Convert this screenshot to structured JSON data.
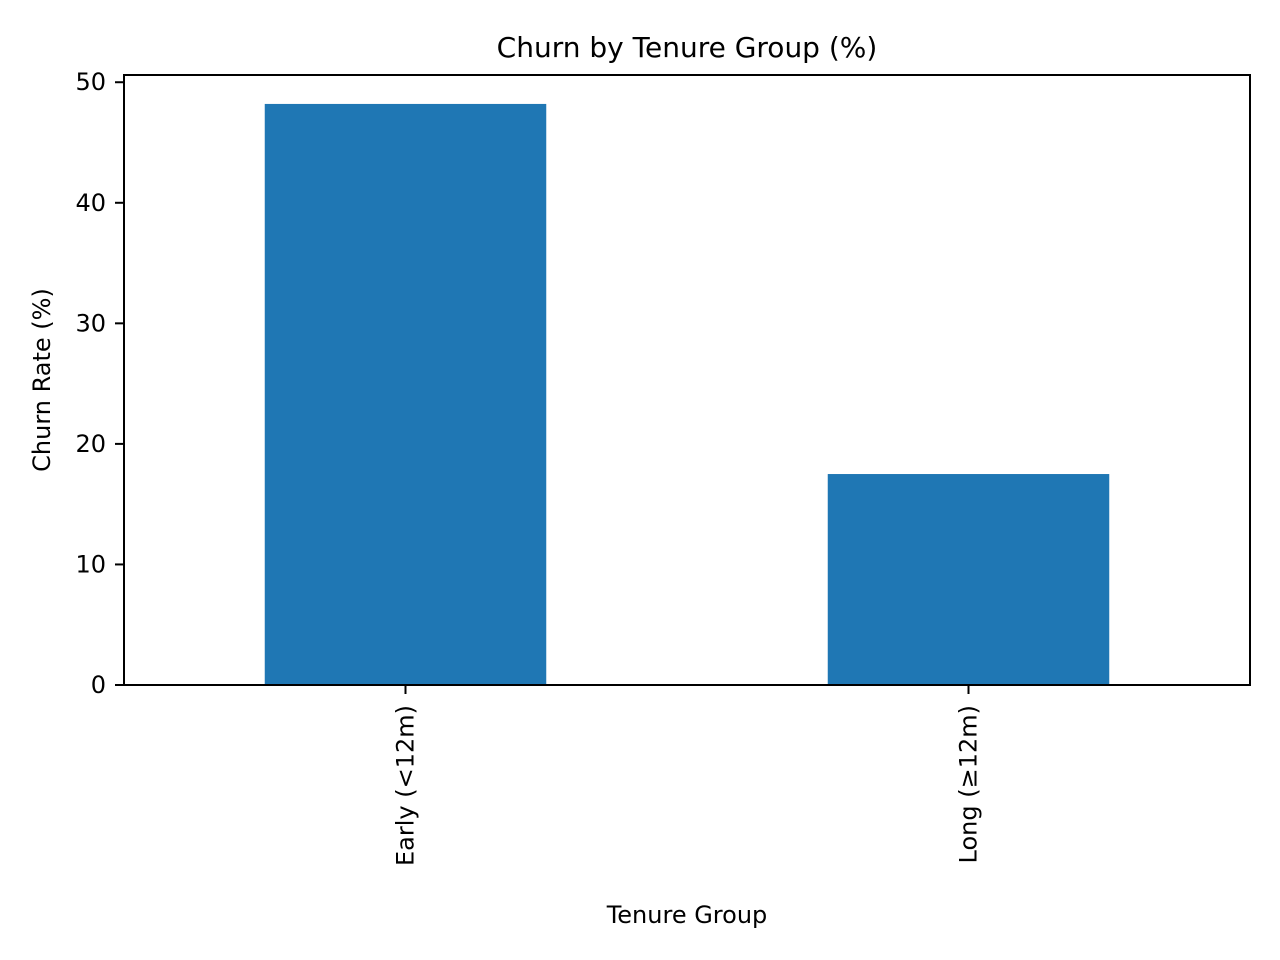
{
  "chart_data": {
    "type": "bar",
    "title": "Churn by Tenure Group (%)",
    "xlabel": "Tenure Group",
    "ylabel": "Churn Rate (%)",
    "categories": [
      "Early (<12m)",
      "Long (≥12m)"
    ],
    "values": [
      48.2,
      17.5
    ],
    "ylim": [
      0,
      50.6
    ],
    "yticks": [
      0,
      10,
      20,
      30,
      40,
      50
    ],
    "bar_color": "#1f77b4",
    "grid": false,
    "legend": "none",
    "xtick_rotation": "vertical"
  }
}
